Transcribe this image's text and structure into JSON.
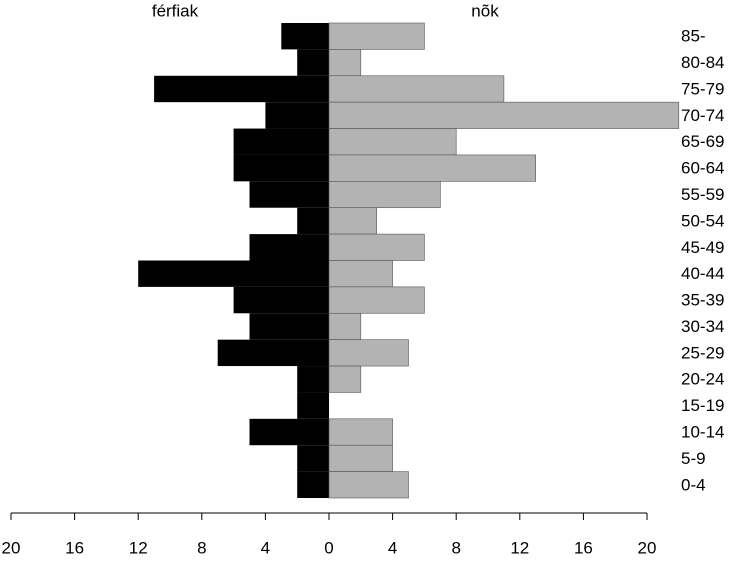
{
  "chart_data": {
    "type": "pyramid",
    "categories": [
      "85-",
      "80-84",
      "75-79",
      "70-74",
      "65-69",
      "60-64",
      "55-59",
      "50-54",
      "45-49",
      "40-44",
      "35-39",
      "30-34",
      "25-29",
      "20-24",
      "15-19",
      "10-14",
      "5-9",
      "0-4"
    ],
    "series": [
      {
        "name": "férfiak",
        "color": "#000000",
        "values": [
          3,
          2,
          11,
          4,
          6,
          6,
          5,
          2,
          5,
          12,
          6,
          5,
          7,
          2,
          2,
          5,
          2,
          2
        ]
      },
      {
        "name": "nõk",
        "color": "#b3b3b3",
        "values": [
          6,
          2,
          11,
          22,
          8,
          13,
          7,
          3,
          6,
          4,
          6,
          2,
          5,
          2,
          0,
          4,
          4,
          5
        ]
      }
    ],
    "xlim": [
      -20,
      20
    ],
    "xticks": [
      {
        "value": -20,
        "label": "20"
      },
      {
        "value": -16,
        "label": "16"
      },
      {
        "value": -12,
        "label": "12"
      },
      {
        "value": -8,
        "label": "8"
      },
      {
        "value": -4,
        "label": "4"
      },
      0,
      4,
      8,
      12,
      16,
      20
    ]
  }
}
